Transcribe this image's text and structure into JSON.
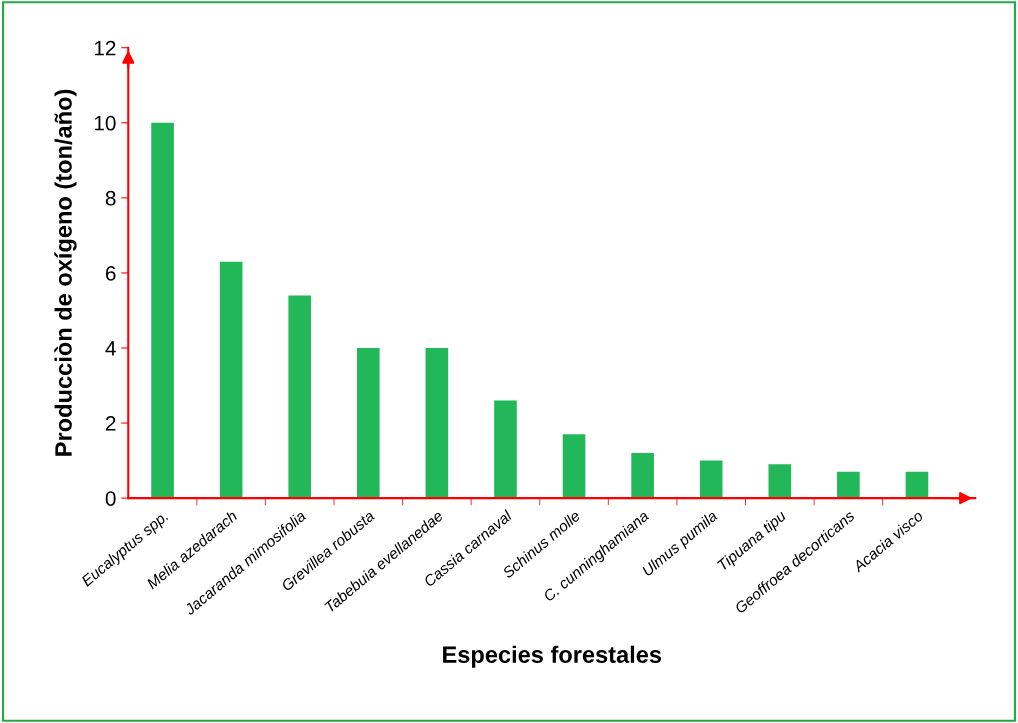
{
  "chart_data": {
    "type": "bar",
    "xlabel": "Especies forestales",
    "ylabel": "Producciòn de oxígeno (ton/año)",
    "categories": [
      "Eucalyptus spp.",
      "Melia azedarach",
      "Jacaranda mimosifolia",
      "Grevillea robusta",
      "Tabebuia evellanedae",
      "Cassia carnaval",
      "Schinus molle",
      "C. cunninghamiana",
      "Ulmus pumila",
      "Tipuana tipu",
      "Geoffroea decorticans",
      "Acacia visco"
    ],
    "values": [
      10.0,
      6.3,
      5.4,
      4.0,
      4.0,
      2.6,
      1.7,
      1.2,
      1.0,
      0.9,
      0.7,
      0.7
    ],
    "color": "#22b85a",
    "ylim": [
      0,
      12
    ],
    "yticks": [
      0,
      2,
      4,
      6,
      8,
      10,
      12
    ],
    "grid": false,
    "legend": false
  }
}
